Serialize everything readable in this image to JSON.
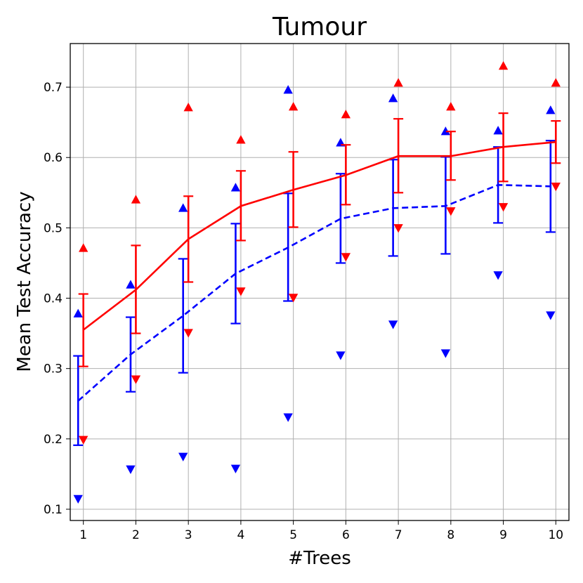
{
  "chart_data": {
    "type": "line",
    "title": "Tumour",
    "xlabel": "#Trees",
    "ylabel": "Mean Test Accuracy",
    "x": [
      1,
      2,
      3,
      4,
      5,
      6,
      7,
      8,
      9,
      10
    ],
    "xlim": [
      0.75,
      10.25
    ],
    "ylim": [
      0.084,
      0.762
    ],
    "yticks": [
      0.1,
      0.2,
      0.3,
      0.4,
      0.5,
      0.6,
      0.7
    ],
    "ytick_labels": [
      "0.1",
      "0.2",
      "0.3",
      "0.4",
      "0.5",
      "0.6",
      "0.7"
    ],
    "xtick_labels": [
      "1",
      "2",
      "3",
      "4",
      "5",
      "6",
      "7",
      "8",
      "9",
      "10"
    ],
    "grid": true,
    "series": [
      {
        "color": "#0000ff",
        "linestyle": "dashed",
        "x_offset": -0.1,
        "mean": [
          0.254,
          0.32,
          0.375,
          0.435,
          0.472,
          0.513,
          0.528,
          0.531,
          0.561,
          0.559
        ],
        "err_low": [
          0.191,
          0.267,
          0.294,
          0.364,
          0.396,
          0.45,
          0.46,
          0.463,
          0.507,
          0.494
        ],
        "err_high": [
          0.318,
          0.373,
          0.456,
          0.506,
          0.549,
          0.577,
          0.597,
          0.601,
          0.615,
          0.624
        ],
        "max": [
          0.378,
          0.419,
          0.528,
          0.557,
          0.696,
          0.621,
          0.684,
          0.637,
          0.638,
          0.667
        ],
        "min": [
          0.115,
          0.157,
          0.175,
          0.158,
          0.231,
          0.319,
          0.363,
          0.322,
          0.433,
          0.376
        ]
      },
      {
        "color": "#ff0000",
        "linestyle": "solid",
        "x_offset": 0,
        "mean": [
          0.355,
          0.412,
          0.484,
          0.531,
          0.554,
          0.575,
          0.602,
          0.602,
          0.615,
          0.622
        ],
        "err_low": [
          0.303,
          0.35,
          0.423,
          0.482,
          0.501,
          0.533,
          0.55,
          0.568,
          0.566,
          0.592
        ],
        "err_high": [
          0.406,
          0.475,
          0.545,
          0.581,
          0.608,
          0.618,
          0.655,
          0.637,
          0.663,
          0.652
        ],
        "max": [
          0.471,
          0.54,
          0.671,
          0.625,
          0.672,
          0.661,
          0.706,
          0.672,
          0.73,
          0.706
        ],
        "min": [
          0.199,
          0.285,
          0.351,
          0.41,
          0.401,
          0.459,
          0.5,
          0.524,
          0.53,
          0.559
        ]
      }
    ]
  }
}
